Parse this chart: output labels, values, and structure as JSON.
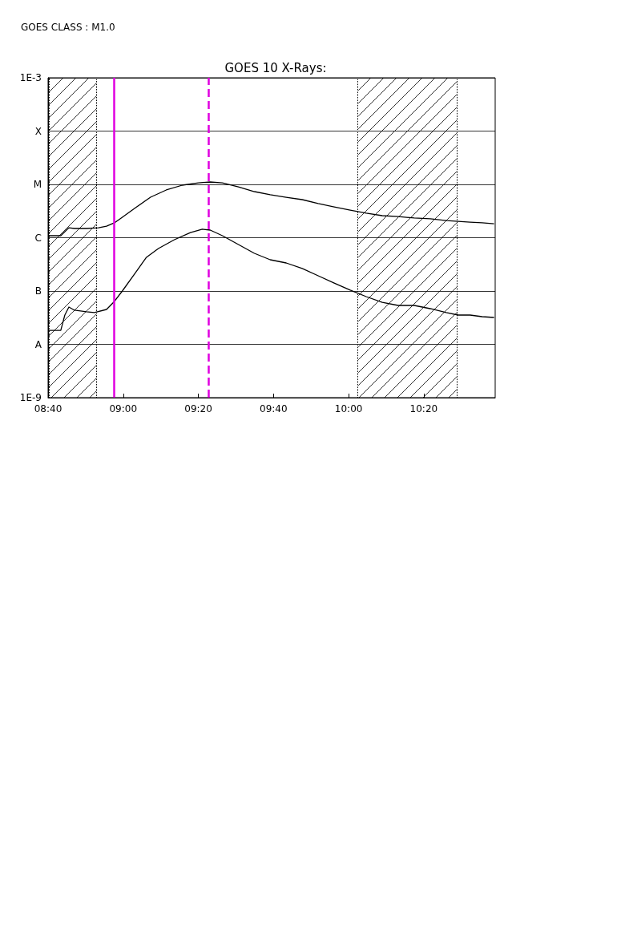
{
  "chart_data": {
    "type": "line",
    "title": "GOES 10 X-Rays:",
    "annotations": [
      "GOES CLASS : M1.0"
    ],
    "xlim": [
      8.6667,
      10.65
    ],
    "xticks": [
      {
        "value": 8.6667,
        "label": "08:40"
      },
      {
        "value": 9,
        "label": "09:00"
      },
      {
        "value": 9.3333,
        "label": "09:20"
      },
      {
        "value": 9.6667,
        "label": "09:40"
      },
      {
        "value": 10,
        "label": "10:00"
      },
      {
        "value": 10.3333,
        "label": "10:20"
      }
    ],
    "ylim": [
      1e-09,
      0.001
    ],
    "yticks": [
      {
        "value": 1e-09,
        "label": "1E-9"
      },
      {
        "value": 1e-08,
        "label": "A"
      },
      {
        "value": 1e-07,
        "label": "B"
      },
      {
        "value": 1e-06,
        "label": "C"
      },
      {
        "value": 1e-05,
        "label": "M"
      },
      {
        "value": 0.0001,
        "label": "X"
      },
      {
        "value": 0.001,
        "label": "1E-3"
      }
    ],
    "log": "y",
    "grid": "y",
    "marker": "none",
    "line_style": "solid",
    "series": [
      {
        "color": "#000000",
        "x": [
          8.667,
          8.723,
          8.759,
          8.784,
          8.837,
          8.89,
          8.926,
          8.961,
          8.996,
          9.05,
          9.121,
          9.191,
          9.262,
          9.333,
          9.386,
          9.44,
          9.511,
          9.582,
          9.652,
          9.723,
          9.794,
          9.865,
          9.936,
          10.007,
          10.078,
          10.149,
          10.22,
          10.291,
          10.362,
          10.433,
          10.486,
          10.539,
          10.592,
          10.645
        ],
        "values": [
          1.09e-06,
          1.09e-06,
          1.54e-06,
          1.49e-06,
          1.49e-06,
          1.54e-06,
          1.65e-06,
          1.9e-06,
          2.42e-06,
          3.54e-06,
          5.74e-06,
          7.85e-06,
          9.66e-06,
          1.07e-05,
          1.11e-05,
          1.07e-05,
          9e-06,
          7.32e-06,
          6.38e-06,
          5.74e-06,
          5.18e-06,
          4.36e-06,
          3.79e-06,
          3.3e-06,
          2.88e-06,
          2.59e-06,
          2.5e-06,
          2.34e-06,
          2.26e-06,
          2.1e-06,
          2.03e-06,
          1.96e-06,
          1.9e-06,
          1.83e-06
        ]
      },
      {
        "color": "#000000",
        "x": [
          8.667,
          8.723,
          8.741,
          8.759,
          8.784,
          8.837,
          8.872,
          8.926,
          8.961,
          8.996,
          9.05,
          9.103,
          9.156,
          9.227,
          9.298,
          9.351,
          9.386,
          9.44,
          9.511,
          9.582,
          9.652,
          9.723,
          9.794,
          9.865,
          9.936,
          10.007,
          10.078,
          10.149,
          10.22,
          10.291,
          10.362,
          10.433,
          10.486,
          10.539,
          10.592,
          10.645
        ],
        "values": [
          1.83e-08,
          1.83e-08,
          3.54e-08,
          5e-08,
          4.36e-08,
          4.07e-08,
          3.93e-08,
          4.51e-08,
          6.38e-08,
          1e-07,
          2.07e-07,
          4.29e-07,
          6.27e-07,
          9.17e-07,
          1.25e-06,
          1.44e-06,
          1.39e-06,
          1.09e-06,
          7.45e-07,
          5.09e-07,
          3.86e-07,
          3.36e-07,
          2.64e-07,
          1.93e-07,
          1.41e-07,
          1.04e-07,
          7.85e-08,
          6.15e-08,
          5.36e-08,
          5.36e-08,
          4.67e-08,
          3.93e-08,
          3.54e-08,
          3.54e-08,
          3.3e-08,
          3.19e-08
        ]
      }
    ],
    "bands": [
      {
        "axis": "x",
        "from": 8.667,
        "to": 8.883
      },
      {
        "axis": "x",
        "from": 10.043,
        "to": 10.479
      }
    ],
    "ref_lines": [
      {
        "axis": "x",
        "value": 8.961,
        "color": "#e000e0",
        "line_style": "solid"
      },
      {
        "axis": "x",
        "value": 9.379,
        "color": "#e000e0",
        "line_style": "dashed"
      }
    ]
  }
}
